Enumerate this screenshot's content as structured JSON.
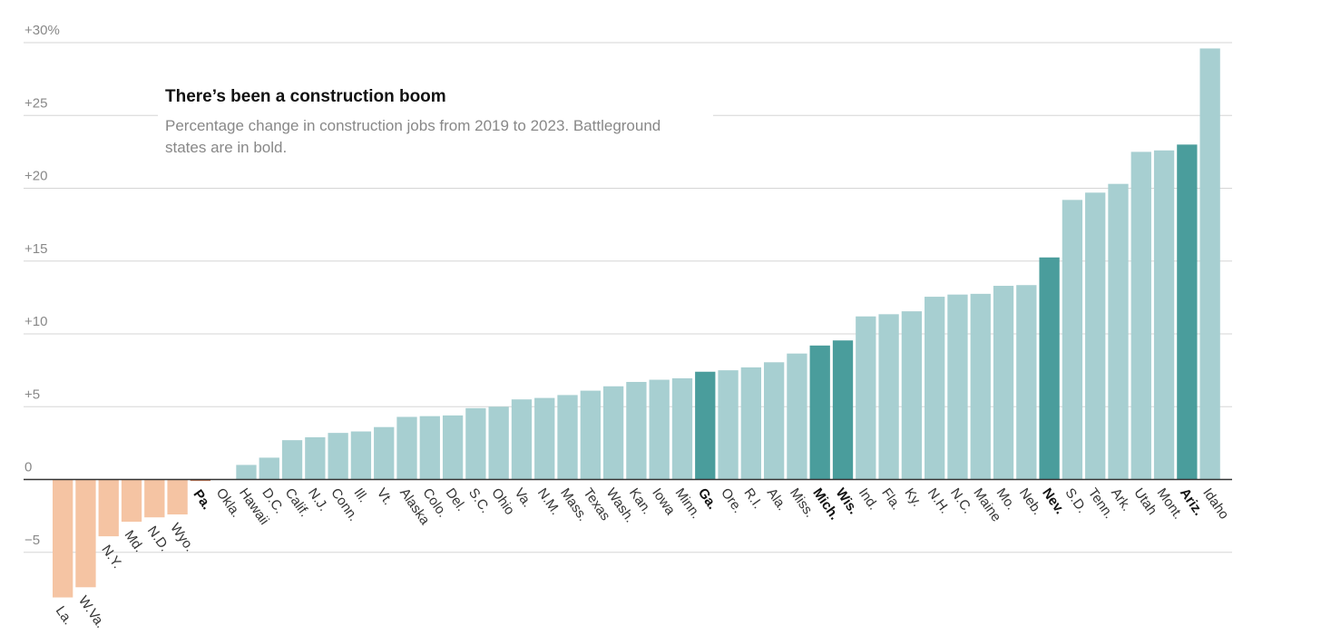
{
  "chart_data": {
    "type": "bar",
    "title": "There’s been a construction boom",
    "subtitle_lines": [
      "Percentage change in construction jobs from 2019 to 2023. Battleground",
      "states are in bold."
    ],
    "ylim": [
      -8.5,
      30
    ],
    "yticks": [
      {
        "value": 30,
        "label": "+30%"
      },
      {
        "value": 25,
        "label": "+25"
      },
      {
        "value": 20,
        "label": "+20"
      },
      {
        "value": 15,
        "label": "+15"
      },
      {
        "value": 10,
        "label": "+10"
      },
      {
        "value": 5,
        "label": "+5"
      },
      {
        "value": 0,
        "label": "0"
      },
      {
        "value": -5,
        "label": "−5"
      }
    ],
    "grid": true,
    "colors": {
      "negative": "#f5c4a3",
      "positive": "#a7cfd1",
      "battleground": "#4a9d9c",
      "near_zero_negative": "#c77b57"
    },
    "categories": [
      "La.",
      "W.Va.",
      "N.Y.",
      "Md.",
      "N.D.",
      "Wyo.",
      "Pa.",
      "Okla.",
      "Hawaii",
      "D.C.",
      "Calif.",
      "N.J.",
      "Conn.",
      "Ill.",
      "Vt.",
      "Alaska",
      "Colo.",
      "Del.",
      "S.C.",
      "Ohio",
      "Va.",
      "N.M.",
      "Mass.",
      "Texas",
      "Wash.",
      "Kan.",
      "Iowa",
      "Minn.",
      "Ga.",
      "Ore.",
      "R.I.",
      "Ala.",
      "Miss.",
      "Mich.",
      "Wis.",
      "Ind.",
      "Fla.",
      "Ky.",
      "N.H.",
      "N.C.",
      "Maine",
      "Mo.",
      "Neb.",
      "Nev.",
      "S.D.",
      "Tenn.",
      "Ark.",
      "Utah",
      "Mont.",
      "Ariz.",
      "Idaho"
    ],
    "values": [
      -8.1,
      -7.4,
      -3.9,
      -2.9,
      -2.6,
      -2.4,
      -0.1,
      0.0,
      1.0,
      1.5,
      2.7,
      2.9,
      3.2,
      3.3,
      3.6,
      4.3,
      4.35,
      4.4,
      4.9,
      5.0,
      5.5,
      5.6,
      5.8,
      6.1,
      6.4,
      6.7,
      6.85,
      6.95,
      7.4,
      7.5,
      7.7,
      8.05,
      8.65,
      9.2,
      9.55,
      11.2,
      11.35,
      11.55,
      12.55,
      12.7,
      12.75,
      13.3,
      13.35,
      15.25,
      19.2,
      19.7,
      20.3,
      22.5,
      22.6,
      23.0,
      29.6
    ],
    "battleground": [
      "Pa.",
      "Ga.",
      "Mich.",
      "Wis.",
      "Nev.",
      "Ariz."
    ]
  }
}
